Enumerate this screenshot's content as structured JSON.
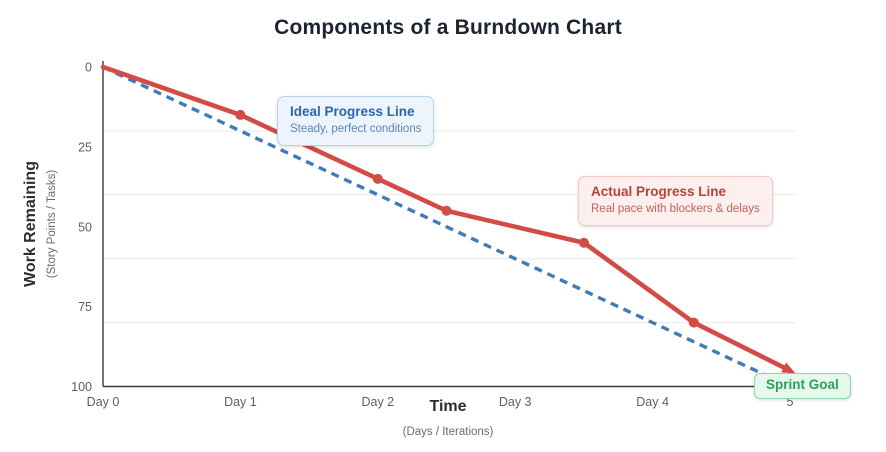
{
  "colors": {
    "grid": "#e9e9e9",
    "axis": "#3a3a3a",
    "tick": "#5f5f5f",
    "ideal_line": "#3e7bb8",
    "actual_line": "#d24b44"
  },
  "chart_data": {
    "type": "line",
    "title": "Components of a Burndown Chart",
    "xlabel": "Time",
    "xlabel_sub": "(Days / Iterations)",
    "ylabel": "Work Remaining",
    "ylabel_sub": "(Story Points / Tasks)",
    "xlim": [
      0,
      5
    ],
    "ylim": [
      0,
      100
    ],
    "y_axis_inverted": true,
    "grid": "horizontal only",
    "legend": "none (annotation callouts instead)",
    "x_tick_values": [
      0,
      1,
      2,
      3,
      4,
      5
    ],
    "x_tick_labels": [
      "Day 0",
      "Day 1",
      "Day 2",
      "Day 3",
      "Day 4",
      "5"
    ],
    "y_tick_values": [
      0,
      25,
      50,
      75,
      100
    ],
    "y_tick_labels": [
      "0",
      "25",
      "50",
      "75",
      "100"
    ],
    "gridline_values": [
      20,
      40,
      60,
      80
    ],
    "series": [
      {
        "id": "ideal",
        "name": "Ideal Progress Line",
        "style": "dashed",
        "color": "#3e7bb8",
        "markers": false,
        "arrow_end": false,
        "points": [
          [
            0,
            0
          ],
          [
            5,
            100
          ]
        ]
      },
      {
        "id": "actual",
        "name": "Actual Progress Line",
        "style": "solid",
        "color": "#d24b44",
        "markers": true,
        "arrow_end": true,
        "points": [
          [
            0,
            0
          ],
          [
            1,
            15
          ],
          [
            2,
            35
          ],
          [
            2.5,
            45
          ],
          [
            3.5,
            55
          ],
          [
            4.3,
            80
          ],
          [
            5,
            95
          ]
        ]
      }
    ],
    "annotations": [
      {
        "id": "ideal",
        "title": "Ideal Progress Line",
        "subtitle": "Steady, perfect conditions"
      },
      {
        "id": "actual",
        "title": "Actual Progress Line",
        "subtitle": "Real pace with blockers & delays"
      },
      {
        "id": "sprint",
        "title": "Sprint Goal",
        "subtitle": ""
      }
    ]
  },
  "annotation_styles": {
    "ideal": {
      "bg": "#edf4fc",
      "border": "#b9d3ef",
      "title": "#2a66ad",
      "subtitle": "#5c86b8"
    },
    "actual": {
      "bg": "#fdefee",
      "border": "#f2c8c5",
      "title": "#b8423a",
      "subtitle": "#c2625c"
    },
    "sprint": {
      "bg": "#e6f8ec",
      "border": "#90d7aa",
      "title": "#2f9e5d",
      "subtitle": "#2f9e5d"
    }
  }
}
